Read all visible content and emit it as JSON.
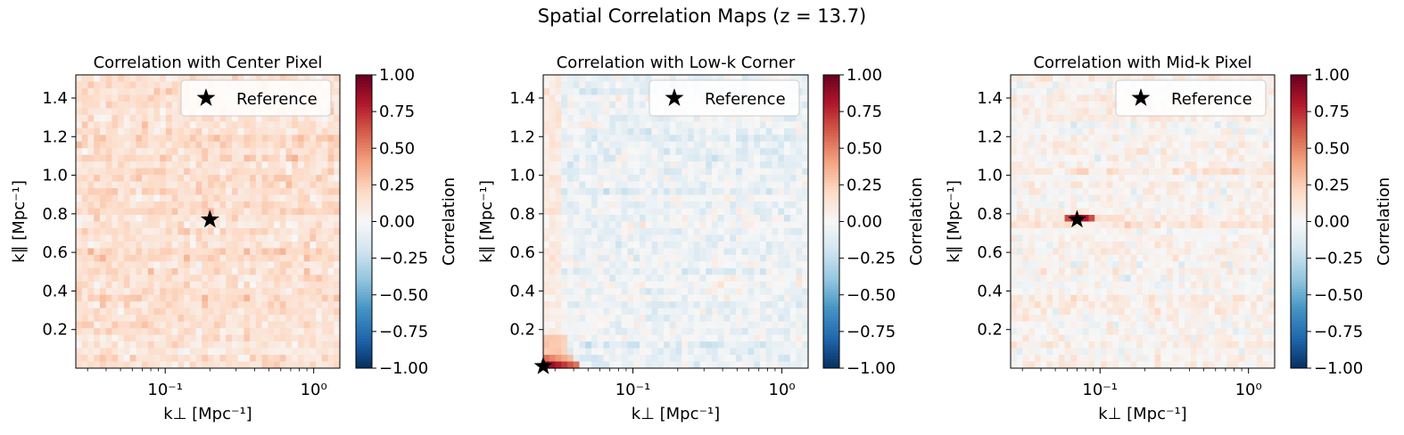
{
  "figure": {
    "title": "Spatial Correlation Maps (z = 13.7)"
  },
  "chart_data": [
    {
      "type": "heatmap",
      "title": "Correlation with Center Pixel",
      "xlabel": "k⊥ [Mpc⁻¹]",
      "ylabel": "k∥ [Mpc⁻¹]",
      "xscale": "log",
      "xlim": [
        0.025,
        1.5
      ],
      "ylim": [
        0.0,
        1.52
      ],
      "xticks": [
        "10⁻¹",
        "10⁰"
      ],
      "yticks": [
        "0.2",
        "0.4",
        "0.6",
        "0.8",
        "1.0",
        "1.2",
        "1.4"
      ],
      "reference": {
        "x": 0.2,
        "y": 0.77
      },
      "legend": {
        "label": "Reference",
        "position": "upper right"
      },
      "colorbar": {
        "label": "Correlation",
        "colormap": "RdBu_r",
        "range": [
          -1.0,
          1.0
        ],
        "ticks": [
          "1.00",
          "0.75",
          "0.50",
          "0.25",
          "0.00",
          "−0.25",
          "−0.50",
          "−0.75",
          "−1.00"
        ]
      },
      "pattern": {
        "mean": 0.15,
        "noise": 0.12,
        "hot_spot": "none"
      }
    },
    {
      "type": "heatmap",
      "title": "Correlation with Low-k Corner",
      "xlabel": "k⊥ [Mpc⁻¹]",
      "ylabel": "k∥ [Mpc⁻¹]",
      "xscale": "log",
      "xlim": [
        0.025,
        1.5
      ],
      "ylim": [
        0.0,
        1.52
      ],
      "xticks": [
        "10⁻¹",
        "10⁰"
      ],
      "yticks": [
        "0.2",
        "0.4",
        "0.6",
        "0.8",
        "1.0",
        "1.2",
        "1.4"
      ],
      "reference": {
        "x": 0.025,
        "y": 0.01
      },
      "legend": {
        "label": "Reference",
        "position": "upper right"
      },
      "colorbar": {
        "label": "Correlation",
        "colormap": "RdBu_r",
        "range": [
          -1.0,
          1.0
        ],
        "ticks": [
          "1.00",
          "0.75",
          "0.50",
          "0.25",
          "0.00",
          "−0.25",
          "−0.50",
          "−0.75",
          "−1.00"
        ]
      },
      "pattern": {
        "mean": -0.05,
        "noise": 0.12,
        "hot_spot": "corner"
      }
    },
    {
      "type": "heatmap",
      "title": "Correlation with Mid-k Pixel",
      "xlabel": "k⊥ [Mpc⁻¹]",
      "ylabel": "k∥ [Mpc⁻¹]",
      "xscale": "log",
      "xlim": [
        0.025,
        1.5
      ],
      "ylim": [
        0.0,
        1.52
      ],
      "xticks": [
        "10⁻¹",
        "10⁰"
      ],
      "yticks": [
        "0.2",
        "0.4",
        "0.6",
        "0.8",
        "1.0",
        "1.2",
        "1.4"
      ],
      "reference": {
        "x": 0.07,
        "y": 0.77
      },
      "legend": {
        "label": "Reference",
        "position": "upper right"
      },
      "colorbar": {
        "label": "Correlation",
        "colormap": "RdBu_r",
        "range": [
          -1.0,
          1.0
        ],
        "ticks": [
          "1.00",
          "0.75",
          "0.50",
          "0.25",
          "0.00",
          "−0.25",
          "−0.50",
          "−0.75",
          "−1.00"
        ]
      },
      "pattern": {
        "mean": 0.04,
        "noise": 0.12,
        "hot_spot": "reference-row"
      }
    }
  ]
}
